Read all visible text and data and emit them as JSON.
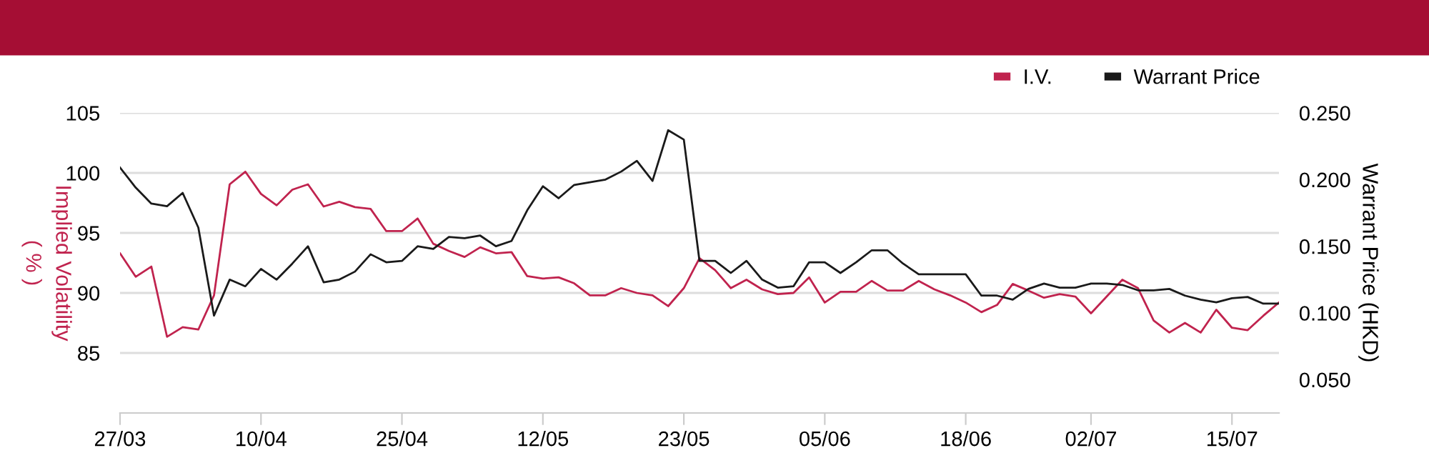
{
  "chart_data": {
    "type": "line",
    "xlabel": null,
    "ylabel": "Implied Volatility\n( % )",
    "y2label": "Warrant Price (HKD)",
    "categories": [
      "27/03",
      null,
      null,
      null,
      null,
      null,
      null,
      null,
      null,
      "10/04",
      null,
      null,
      null,
      null,
      null,
      null,
      null,
      null,
      "25/04",
      null,
      null,
      null,
      null,
      null,
      null,
      null,
      null,
      "12/05",
      null,
      null,
      null,
      null,
      null,
      null,
      null,
      null,
      "23/05",
      null,
      null,
      null,
      null,
      null,
      null,
      null,
      null,
      "05/06",
      null,
      null,
      null,
      null,
      null,
      null,
      null,
      null,
      "18/06",
      null,
      null,
      null,
      null,
      null,
      null,
      null,
      "02/07",
      null,
      null,
      null,
      null,
      null,
      null,
      null,
      null,
      "15/07",
      null,
      null,
      null
    ],
    "series": [
      {
        "name": "I.V.",
        "color": "#c0234e",
        "values": [
          93.3,
          91.35,
          92.2,
          86.35,
          87.15,
          86.95,
          89.8,
          99.05,
          100.1,
          98.25,
          97.3,
          98.6,
          99.05,
          97.2,
          97.6,
          97.15,
          97.0,
          95.15,
          95.15,
          96.2,
          94.1,
          93.5,
          93.0,
          93.8,
          93.3,
          93.4,
          91.4,
          91.2,
          91.3,
          90.8,
          89.8,
          89.8,
          90.4,
          90.0,
          89.8,
          88.9,
          90.4,
          92.9,
          91.9,
          90.4,
          91.1,
          90.3,
          89.9,
          90.0,
          91.3,
          89.2,
          90.1,
          90.1,
          91.0,
          90.2,
          90.2,
          91.0,
          90.3,
          89.8,
          89.2,
          88.4,
          89.0,
          90.75,
          90.2,
          89.6,
          89.9,
          89.7,
          88.3,
          89.7,
          91.1,
          90.4,
          87.7,
          86.7,
          87.5,
          86.7,
          88.6,
          87.1,
          86.9,
          88.1,
          89.2
        ]
      },
      {
        "name": "Warrant Price",
        "color": "#1a1a1a",
        "axis": "y2",
        "values": [
          0.209,
          0.194,
          0.182,
          0.18,
          0.19,
          0.164,
          0.098,
          0.125,
          0.12,
          0.133,
          0.125,
          0.137,
          0.15,
          0.123,
          0.125,
          0.131,
          0.144,
          0.138,
          0.139,
          0.15,
          0.148,
          0.157,
          0.156,
          0.158,
          0.15,
          0.154,
          0.177,
          0.195,
          0.186,
          0.196,
          0.198,
          0.2,
          0.206,
          0.214,
          0.199,
          0.237,
          0.23,
          0.139,
          0.139,
          0.13,
          0.139,
          0.125,
          0.119,
          0.12,
          0.138,
          0.138,
          0.13,
          0.138,
          0.147,
          0.147,
          0.137,
          0.129,
          0.129,
          0.129,
          0.129,
          0.113,
          0.113,
          0.11,
          0.118,
          0.122,
          0.119,
          0.119,
          0.122,
          0.122,
          0.121,
          0.117,
          0.117,
          0.118,
          0.113,
          0.11,
          0.108,
          0.111,
          0.112,
          0.107,
          0.107
        ]
      }
    ],
    "ylim": [
      80,
      105
    ],
    "yticks": [
      85,
      90,
      95,
      100,
      105
    ],
    "y2lim": [
      0.025,
      0.25
    ],
    "y2ticks": [
      {
        "value": 0.05,
        "label": "0.050"
      },
      {
        "value": 0.1,
        "label": "0.100"
      },
      {
        "value": 0.15,
        "label": "0.150"
      },
      {
        "value": 0.2,
        "label": "0.200"
      },
      {
        "value": 0.25,
        "label": "0.250"
      }
    ],
    "grid": "y",
    "legend": "top right",
    "marker": "none",
    "line_style": "solid"
  }
}
